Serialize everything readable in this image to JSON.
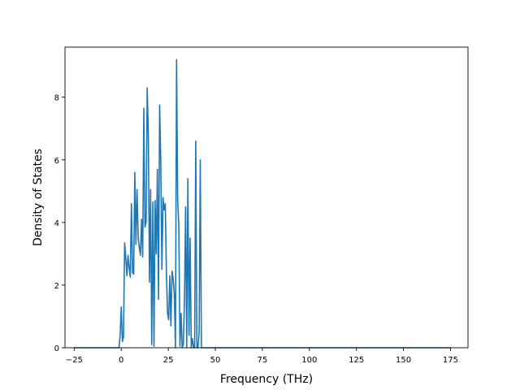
{
  "chart_data": {
    "type": "line",
    "title": "",
    "xlabel": "Frequency (THz)",
    "ylabel": "Density of States",
    "xlim": [
      -29.9,
      184.3
    ],
    "ylim": [
      0,
      9.6
    ],
    "xticks": [
      -25,
      0,
      25,
      50,
      75,
      100,
      125,
      150,
      175
    ],
    "yticks": [
      0,
      2,
      4,
      6,
      8
    ],
    "xtick_labels": [
      "−25",
      "0",
      "25",
      "50",
      "75",
      "100",
      "125",
      "150",
      "175"
    ],
    "ytick_labels": [
      "0",
      "2",
      "4",
      "6",
      "8"
    ],
    "grid": false,
    "legend": "none",
    "series": [
      {
        "color": "#1f77b4",
        "x": [
          -25,
          -1.2,
          -0.6,
          0.0,
          0.6,
          1.2,
          1.8,
          2.4,
          3.0,
          3.6,
          4.2,
          4.8,
          5.4,
          6.0,
          6.6,
          7.2,
          7.8,
          8.4,
          9.0,
          9.6,
          10.2,
          10.8,
          11.4,
          12.0,
          12.6,
          13.2,
          13.8,
          14.4,
          15.0,
          15.6,
          16.2,
          16.8,
          17.4,
          18.0,
          18.6,
          19.2,
          19.8,
          20.4,
          21.0,
          21.6,
          22.2,
          22.8,
          23.4,
          24.0,
          24.6,
          25.2,
          25.8,
          26.4,
          27.0,
          27.6,
          28.2,
          28.8,
          29.4,
          30.0,
          30.6,
          31.2,
          31.8,
          32.4,
          33.0,
          33.6,
          34.2,
          34.8,
          35.4,
          36.0,
          36.6,
          37.2,
          37.8,
          38.4,
          39.0,
          39.6,
          40.2,
          40.8,
          41.4,
          42.0,
          42.6,
          43.2,
          43.8,
          44.4,
          45.0,
          45.6,
          46.2,
          46.8,
          47.4,
          48.0,
          48.6,
          49.2,
          49.8,
          50.4,
          51.0,
          51.6,
          52.2,
          52.8,
          53.4,
          54.0,
          54.6,
          55.2,
          55.8,
          56.4,
          57.0,
          57.6,
          58.2,
          58.8,
          59.4,
          60.0,
          60.6,
          61.2,
          61.8,
          62.4,
          63.0,
          63.6,
          64.2,
          64.8,
          65.4,
          66.0,
          66.6,
          67.2,
          67.8,
          68.4,
          69.0,
          69.6,
          70.2,
          70.8,
          71.4,
          72.0,
          175
        ],
        "y": [
          0,
          0,
          0.4,
          1.3,
          0.2,
          0.35,
          3.35,
          2.9,
          2.3,
          2.95,
          2.55,
          2.25,
          4.6,
          2.4,
          2.35,
          5.6,
          3.3,
          5.05,
          3.5,
          3.2,
          2.95,
          4.1,
          2.9,
          7.65,
          3.85,
          4.0,
          8.3,
          6.8,
          2.1,
          5.05,
          0.1,
          4.65,
          0.05,
          4.7,
          3.0,
          5.7,
          1.55,
          7.75,
          6.0,
          2.5,
          4.8,
          4.4,
          4.6,
          2.4,
          1.1,
          0.9,
          2.3,
          0.7,
          2.45,
          2.2,
          1.7,
          0.0,
          9.2,
          4.7,
          3.9,
          0.05,
          1.1,
          0.0,
          0.1,
          1.5,
          4.5,
          0.0,
          5.4,
          0.4,
          3.5,
          0.0,
          0.3,
          0.0,
          0.0,
          6.6,
          0.0,
          0.0,
          0.5,
          6.0,
          0.0,
          0.0,
          0.0,
          0.0,
          0.0,
          0.0,
          0.0,
          0.0,
          0.0,
          0.0,
          0.0,
          0.0,
          0.0,
          0.0,
          0.0,
          0.0,
          0.0,
          0.0,
          0.0,
          0.0,
          0.0,
          0.0,
          0.0,
          0.0,
          0.0,
          0.0,
          0.0,
          0.0,
          0.0,
          0.0,
          0.0,
          0.0,
          0.0,
          0.0,
          0.0,
          0.0,
          0.0,
          0.0,
          0.0,
          0.0,
          0.0,
          0.0,
          0.0,
          0.0,
          0.0,
          0.0,
          0.0,
          0.0,
          0.0,
          0.0,
          0.0
        ]
      }
    ]
  }
}
